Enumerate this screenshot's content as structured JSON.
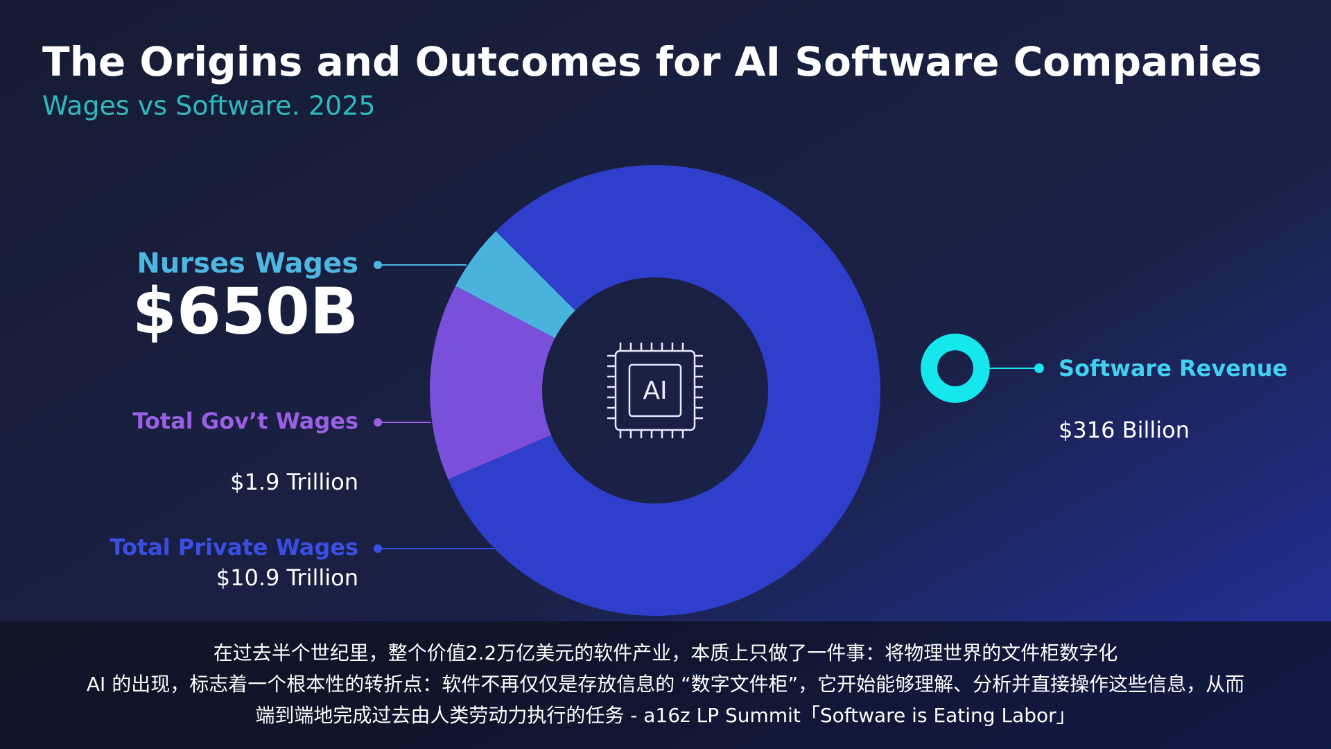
{
  "chart_data": {
    "type": "donut",
    "title": "The Origins and Outcomes for AI Software Companies",
    "subtitle": "Wages vs Software. 2025",
    "center_label": "AI",
    "categories": [
      "Nurses Wages",
      "Total Gov’t Wages",
      "Total Private Wages"
    ],
    "values": [
      650,
      1900,
      10900
    ],
    "value_labels": [
      "$650B",
      "$1.9 Trillion",
      "$10.9 Trillion"
    ],
    "colors": [
      "#4ab3dd",
      "#7a4fd9",
      "#2f3ecb"
    ],
    "comparison": {
      "name": "Software Revenue",
      "value": 316,
      "value_label": "$316 Billion",
      "color": "#16e6ee"
    }
  },
  "captions": [
    "在过去半个世纪里，整个价值2.2万亿美元的软件产业，本质上只做了一件事：将物理世界的文件柜数字化",
    "AI 的出现，标志着一个根本性的转折点：软件不再仅仅是存放信息的 “数字文件柜”，它开始能够理解、分析并直接操作这些信息，从而",
    "端到端地完成过去由人类劳动力执行的任务 - a16z LP Summit「Software is Eating Labor」"
  ]
}
